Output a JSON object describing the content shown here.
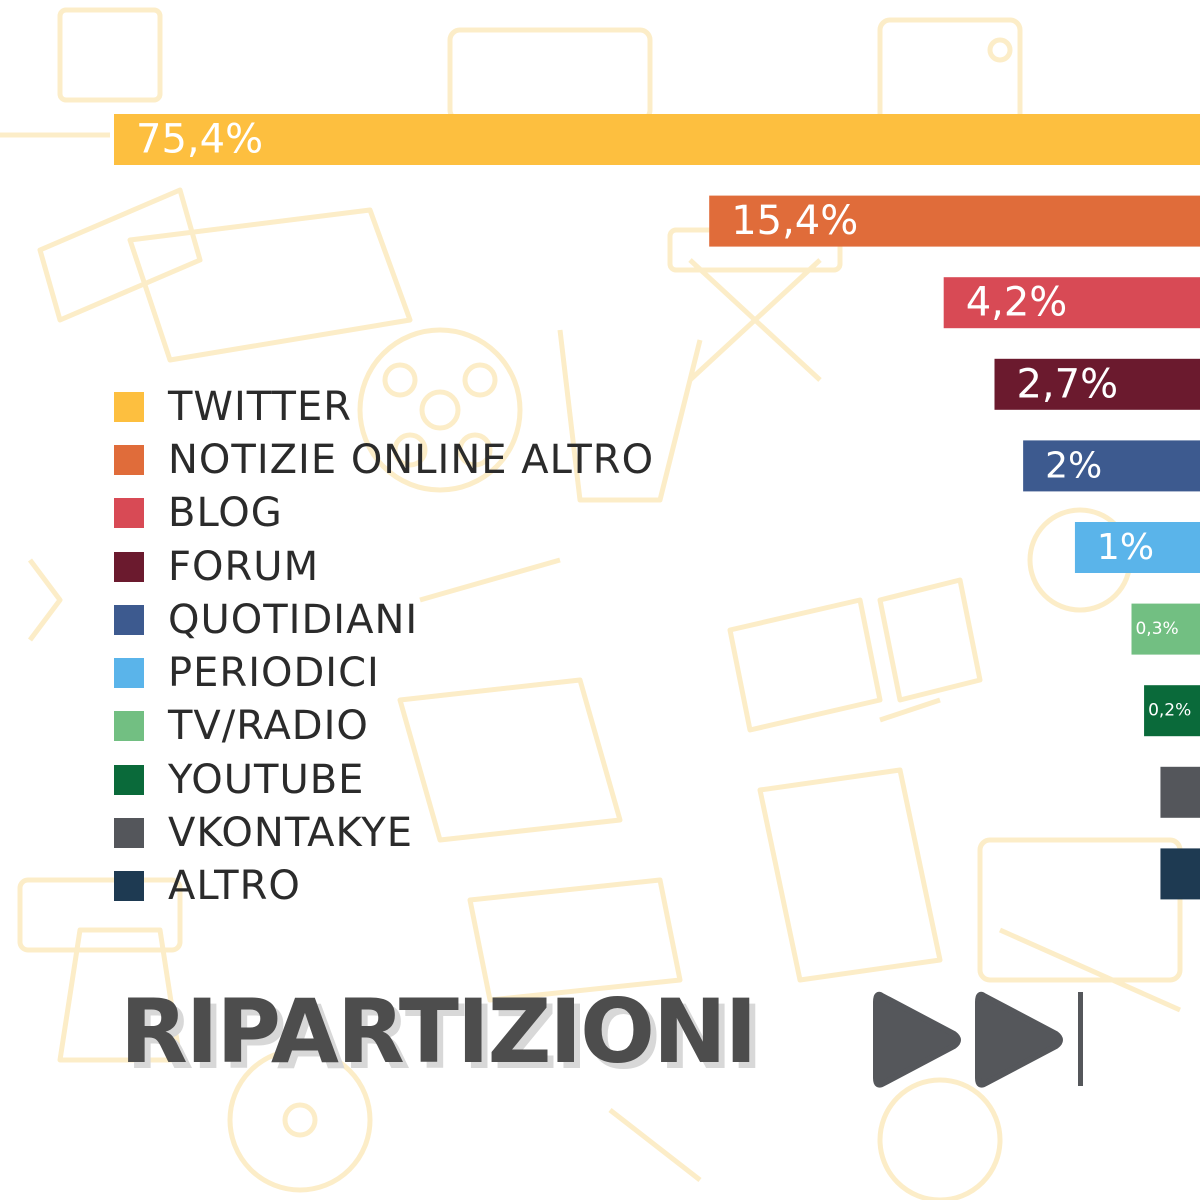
{
  "chart_data": {
    "type": "bar",
    "orientation": "horizontal",
    "categories": [
      "TWITTER",
      "NOTIZIE ONLINE ALTRO",
      "BLOG",
      "FORUM",
      "QUOTIDIANI",
      "PERIODICI",
      "TV/RADIO",
      "YOUTUBE",
      "VKONTAKYE",
      "ALTRO"
    ],
    "values": [
      75.4,
      15.4,
      4.2,
      2.7,
      2.0,
      1.0,
      0.3,
      0.2,
      0.1,
      0.1
    ],
    "value_labels": [
      "75,4%",
      "15,4%",
      "4,2%",
      "2,7%",
      "2%",
      "1%",
      "0,3%",
      "0,2%",
      "",
      ""
    ],
    "colors": [
      "#fdbf3f",
      "#e06c3a",
      "#d84a55",
      "#6b1a2e",
      "#3d5a8f",
      "#5ab4ea",
      "#72bf82",
      "#0a6a3a",
      "#54565b",
      "#1e3a52"
    ],
    "legend": "left",
    "grid": false,
    "bars_anchored": "right"
  },
  "legend_items": [
    {
      "label": "TWITTER"
    },
    {
      "label": "NOTIZIE ONLINE ALTRO"
    },
    {
      "label": "BLOG"
    },
    {
      "label": "FORUM"
    },
    {
      "label": "QUOTIDIANI"
    },
    {
      "label": "PERIODICI"
    },
    {
      "label": "TV/RADIO"
    },
    {
      "label": "YOUTUBE"
    },
    {
      "label": "VKONTAKYE"
    },
    {
      "label": "ALTRO"
    }
  ],
  "title": "RIPARTIZIONI",
  "icons": {
    "next": "fast-forward-icon"
  },
  "theme": {
    "background_pattern_color": "#fcedc8",
    "title_color": "#4d4d4d"
  }
}
